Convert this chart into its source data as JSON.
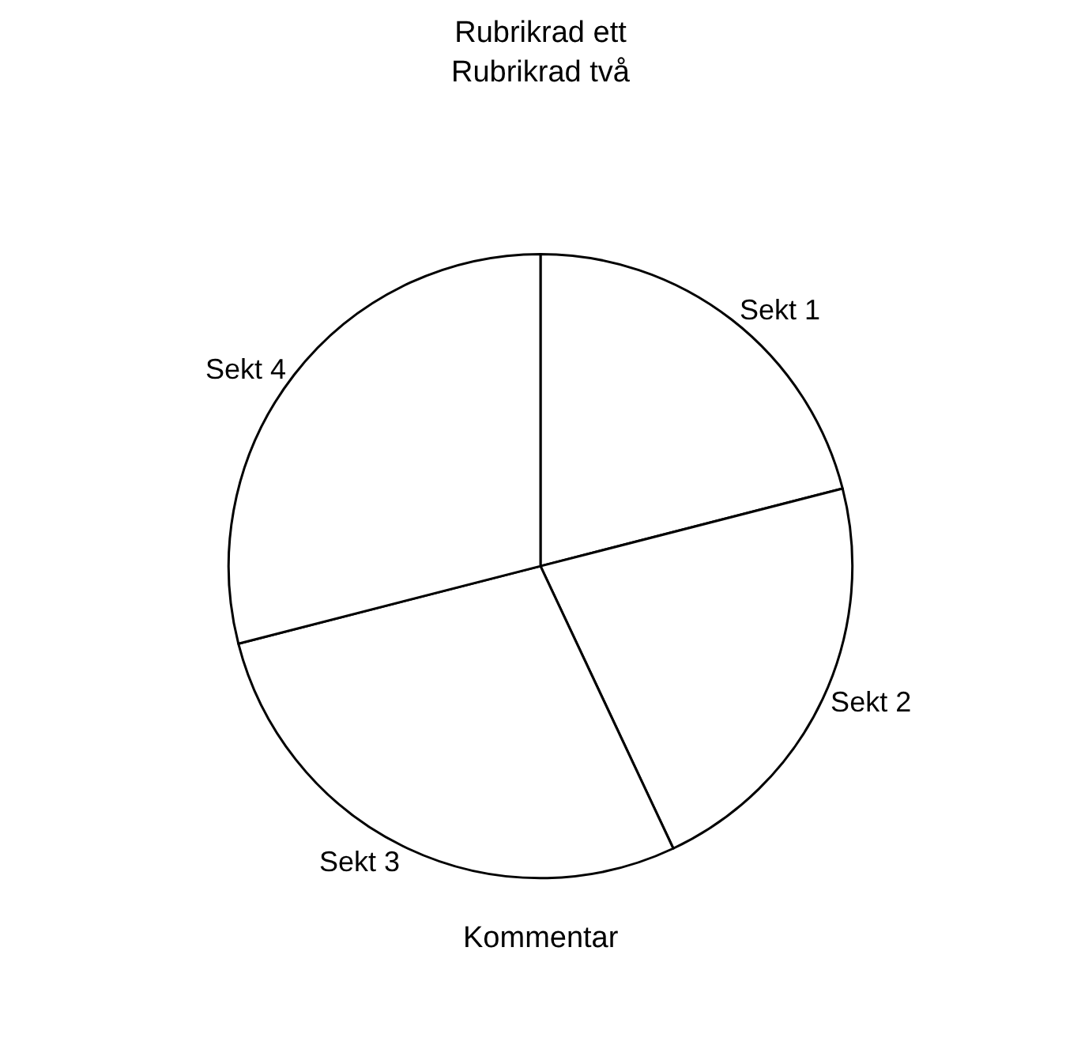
{
  "chart_data": {
    "type": "pie",
    "title": "Rubrikrad ett\nRubrikrad två",
    "categories": [
      "Sekt 1",
      "Sekt 2",
      "Sekt 3",
      "Sekt 4"
    ],
    "values": [
      21,
      22,
      28,
      29
    ],
    "colors": [
      "#ffffff",
      "#ffffff",
      "#ffffff",
      "#ffffff"
    ],
    "legend": false,
    "annotations": [
      "Kommentar"
    ]
  }
}
